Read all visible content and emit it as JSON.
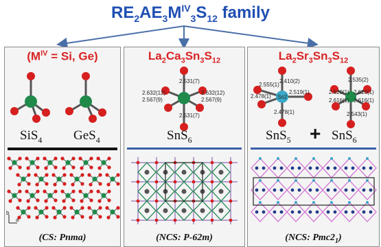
{
  "title": {
    "base": "RE",
    "sub1": "2",
    "mid1": "AE",
    "sub2": "3",
    "mid2": "M",
    "sup": "IV",
    "sub3": "3",
    "mid3": "S",
    "sub4": "12",
    "tail": " family"
  },
  "panels": [
    {
      "header": {
        "open": "(M",
        "sup": "IV",
        "rest": " = Si, Ge)"
      },
      "units": [
        {
          "base": "SiS",
          "sub": "4"
        },
        {
          "base": "GeS",
          "sub": "4"
        }
      ],
      "axes": {
        "b": "b",
        "a": "a"
      },
      "caption": {
        "group": "CS",
        "space": "Pnma",
        "sub": ""
      }
    },
    {
      "header": {
        "a": "La",
        "a_sub": "2",
        "b": "Ca",
        "b_sub": "3",
        "c": "Sn",
        "c_sub": "3",
        "d": "S",
        "d_sub": "12"
      },
      "unit": {
        "base": "SnS",
        "sub": "6"
      },
      "bonds": [
        "2.531(7)",
        "2.632(12)",
        "2.567(9)",
        "2.632(12)",
        "2.567(9)",
        "2.531(7)"
      ],
      "caption": {
        "group": "NCS",
        "space": "P-62m",
        "sub": ""
      }
    },
    {
      "header": {
        "a": "La",
        "a_sub": "2",
        "b": "Sr",
        "b_sub": "3",
        "c": "Sn",
        "c_sub": "3",
        "d": "S",
        "d_sub": "12"
      },
      "unit1": {
        "base": "SnS",
        "sub": "5"
      },
      "plus": "+",
      "unit2": {
        "base": "SnS",
        "sub": "6"
      },
      "bonds_left": [
        "2.410(2)",
        "2.555(1)",
        "2.478(1)",
        "Sn2",
        "2.519(1)",
        "2.478(1)"
      ],
      "bonds_right": [
        "2.535(2)",
        "2.620(1)",
        "2.620(1)",
        "2.616(1)",
        "2.616(1)",
        "2.543(1)"
      ],
      "caption": {
        "group": "NCS",
        "space": "Pmc2",
        "sub": "1"
      }
    }
  ],
  "colors": {
    "title": "#1f4fb3",
    "header": "#d92323",
    "sulfur": "#d61f1f",
    "metal": "#1f8a4a",
    "tin": "#3aa8c8",
    "sep_blue": "#3a5fa8"
  }
}
